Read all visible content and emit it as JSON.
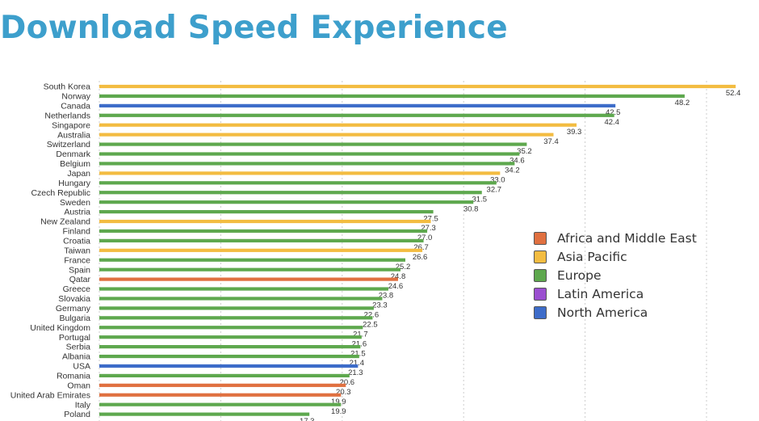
{
  "chart_data": {
    "type": "bar",
    "orientation": "horizontal",
    "title": "Download Speed Experience",
    "grid": true,
    "legend_position": "right",
    "xlim": [
      0,
      55
    ],
    "legend": [
      {
        "name": "Africa and Middle East",
        "color": "#e07040"
      },
      {
        "name": "Asia Pacific",
        "color": "#f3bc41"
      },
      {
        "name": "Europe",
        "color": "#5ea84e"
      },
      {
        "name": "Latin America",
        "color": "#9b4fd0"
      },
      {
        "name": "North America",
        "color": "#3d6cc9"
      }
    ],
    "bars": [
      {
        "country": "South Korea",
        "value": 52.4,
        "region": "Asia Pacific"
      },
      {
        "country": "Norway",
        "value": 48.2,
        "region": "Europe"
      },
      {
        "country": "Canada",
        "value": 42.5,
        "region": "North America"
      },
      {
        "country": "Netherlands",
        "value": 42.4,
        "region": "Europe"
      },
      {
        "country": "Singapore",
        "value": 39.3,
        "region": "Asia Pacific"
      },
      {
        "country": "Australia",
        "value": 37.4,
        "region": "Asia Pacific"
      },
      {
        "country": "Switzerland",
        "value": 35.2,
        "region": "Europe"
      },
      {
        "country": "Denmark",
        "value": 34.6,
        "region": "Europe"
      },
      {
        "country": "Belgium",
        "value": 34.2,
        "region": "Europe"
      },
      {
        "country": "Japan",
        "value": 33.0,
        "region": "Asia Pacific"
      },
      {
        "country": "Hungary",
        "value": 32.7,
        "region": "Europe"
      },
      {
        "country": "Czech Republic",
        "value": 31.5,
        "region": "Europe"
      },
      {
        "country": "Sweden",
        "value": 30.8,
        "region": "Europe"
      },
      {
        "country": "Austria",
        "value": 27.5,
        "region": "Europe"
      },
      {
        "country": "New Zealand",
        "value": 27.3,
        "region": "Asia Pacific"
      },
      {
        "country": "Finland",
        "value": 27.0,
        "region": "Europe"
      },
      {
        "country": "Croatia",
        "value": 26.7,
        "region": "Europe"
      },
      {
        "country": "Taiwan",
        "value": 26.6,
        "region": "Asia Pacific"
      },
      {
        "country": "France",
        "value": 25.2,
        "region": "Europe"
      },
      {
        "country": "Spain",
        "value": 24.8,
        "region": "Europe"
      },
      {
        "country": "Qatar",
        "value": 24.6,
        "region": "Africa and Middle East"
      },
      {
        "country": "Greece",
        "value": 23.8,
        "region": "Europe"
      },
      {
        "country": "Slovakia",
        "value": 23.3,
        "region": "Europe"
      },
      {
        "country": "Germany",
        "value": 22.6,
        "region": "Europe"
      },
      {
        "country": "Bulgaria",
        "value": 22.5,
        "region": "Europe"
      },
      {
        "country": "United Kingdom",
        "value": 21.7,
        "region": "Europe"
      },
      {
        "country": "Portugal",
        "value": 21.6,
        "region": "Europe"
      },
      {
        "country": "Serbia",
        "value": 21.5,
        "region": "Europe"
      },
      {
        "country": "Albania",
        "value": 21.4,
        "region": "Europe"
      },
      {
        "country": "USA",
        "value": 21.3,
        "region": "North America"
      },
      {
        "country": "Romania",
        "value": 20.6,
        "region": "Europe"
      },
      {
        "country": "Oman",
        "value": 20.3,
        "region": "Africa and Middle East"
      },
      {
        "country": "United Arab Emirates",
        "value": 19.9,
        "region": "Africa and Middle East"
      },
      {
        "country": "Italy",
        "value": 19.9,
        "region": "Europe"
      },
      {
        "country": "Poland",
        "value": 17.3,
        "region": "Europe"
      }
    ]
  }
}
